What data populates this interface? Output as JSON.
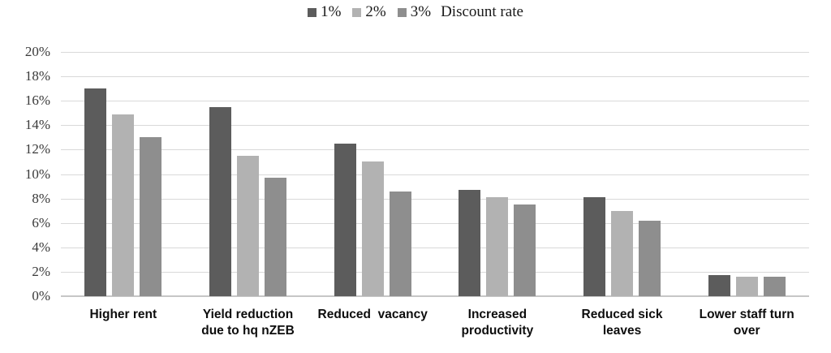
{
  "legend": {
    "items": [
      {
        "label": "1%",
        "color": "#5c5c5c"
      },
      {
        "label": "2%",
        "color": "#b2b2b2"
      },
      {
        "label": "3%",
        "color": "#8e8e8e"
      }
    ],
    "suffix": "Discount rate"
  },
  "chart_data": {
    "type": "bar",
    "title": "",
    "categories": [
      "Higher rent",
      "Yield reduction due to hq nZEB",
      "Reduced  vacancy",
      "Increased productivity",
      "Reduced sick leaves",
      "Lower staff turn over"
    ],
    "series": [
      {
        "name": "1%",
        "color": "#5c5c5c",
        "values": [
          17.0,
          15.5,
          12.5,
          8.7,
          8.1,
          1.7
        ]
      },
      {
        "name": "2%",
        "color": "#b2b2b2",
        "values": [
          14.9,
          11.5,
          11.0,
          8.1,
          7.0,
          1.6
        ]
      },
      {
        "name": "3%",
        "color": "#8e8e8e",
        "values": [
          13.0,
          9.7,
          8.6,
          7.5,
          6.2,
          1.6
        ]
      }
    ],
    "xlabel": "",
    "ylabel": "",
    "ylim": [
      0,
      20
    ],
    "ytick_step": 2,
    "ytick_labels": [
      "0%",
      "2%",
      "4%",
      "6%",
      "8%",
      "10%",
      "12%",
      "14%",
      "16%",
      "18%",
      "20%"
    ],
    "grid": true,
    "legend_position": "top",
    "gridline_color": "#d9d9d9",
    "axisline_color": "#c6c6c6"
  }
}
